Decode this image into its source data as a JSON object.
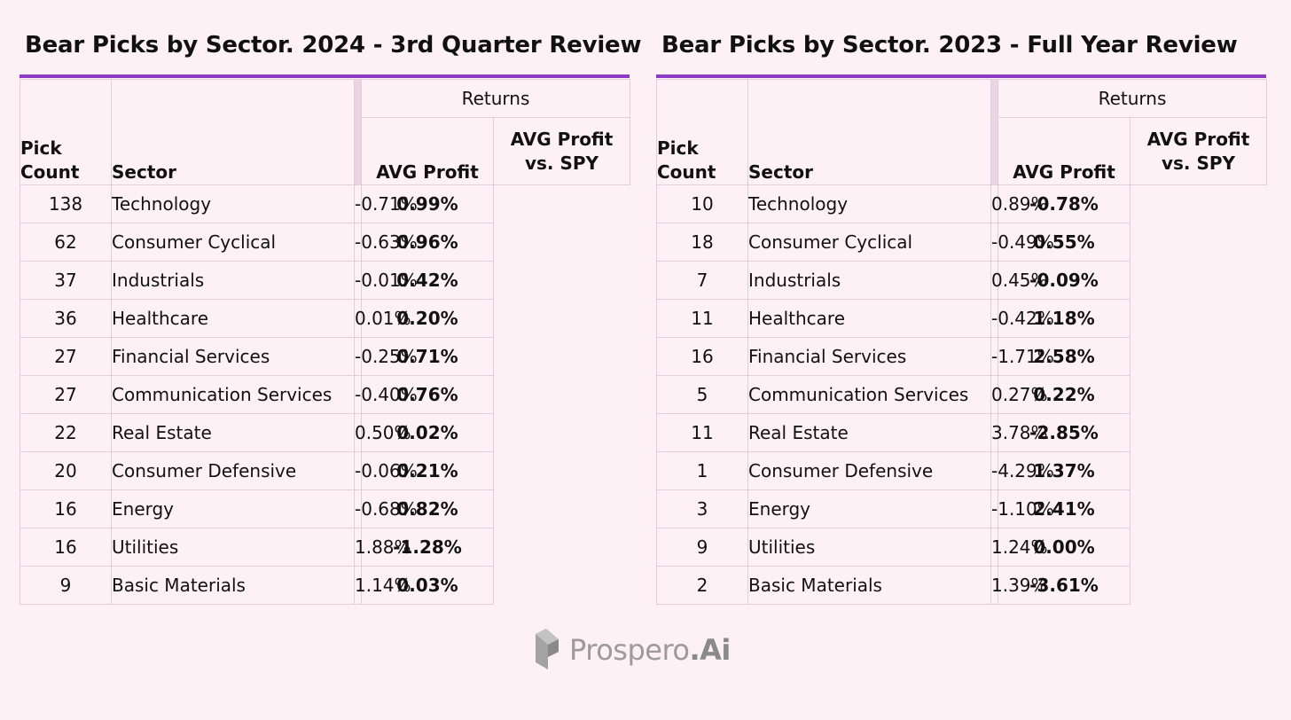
{
  "tables": [
    {
      "title": "Bear Picks by Sector.  2024 - 3rd Quarter Review",
      "headers": {
        "pick_count": "Pick\nCount",
        "sector": "Sector",
        "returns": "Returns",
        "avg_profit": "AVG Profit",
        "avg_profit_vs_spy": "AVG Profit\nvs. SPY"
      },
      "rows": [
        {
          "count": "138",
          "sector": "Technology",
          "avg": "-0.71%",
          "vs": "0.99%"
        },
        {
          "count": "62",
          "sector": "Consumer Cyclical",
          "avg": "-0.63%",
          "vs": "0.96%"
        },
        {
          "count": "37",
          "sector": "Industrials",
          "avg": "-0.01%",
          "vs": "0.42%"
        },
        {
          "count": "36",
          "sector": "Healthcare",
          "avg": "0.01%",
          "vs": "0.20%"
        },
        {
          "count": "27",
          "sector": "Financial Services",
          "avg": "-0.25%",
          "vs": "0.71%"
        },
        {
          "count": "27",
          "sector": "Communication Services",
          "avg": "-0.40%",
          "vs": "0.76%"
        },
        {
          "count": "22",
          "sector": "Real Estate",
          "avg": "0.50%",
          "vs": "0.02%"
        },
        {
          "count": "20",
          "sector": "Consumer Defensive",
          "avg": "-0.06%",
          "vs": "0.21%"
        },
        {
          "count": "16",
          "sector": "Energy",
          "avg": "-0.68%",
          "vs": "0.82%"
        },
        {
          "count": "16",
          "sector": "Utilities",
          "avg": "1.88%",
          "vs": "-1.28%"
        },
        {
          "count": "9",
          "sector": "Basic Materials",
          "avg": "1.14%",
          "vs": "0.03%"
        }
      ]
    },
    {
      "title": "Bear Picks by Sector.  2023 - Full Year Review",
      "headers": {
        "pick_count": "Pick\nCount",
        "sector": "Sector",
        "returns": "Returns",
        "avg_profit": "AVG Profit",
        "avg_profit_vs_spy": "AVG Profit\nvs. SPY"
      },
      "rows": [
        {
          "count": "10",
          "sector": "Technology",
          "avg": "0.89%",
          "vs": "-0.78%"
        },
        {
          "count": "18",
          "sector": "Consumer Cyclical",
          "avg": "-0.49%",
          "vs": "0.55%"
        },
        {
          "count": "7",
          "sector": "Industrials",
          "avg": "0.45%",
          "vs": "-0.09%"
        },
        {
          "count": "11",
          "sector": "Healthcare",
          "avg": "-0.42%",
          "vs": "1.18%"
        },
        {
          "count": "16",
          "sector": "Financial Services",
          "avg": "-1.71%",
          "vs": "2.58%"
        },
        {
          "count": "5",
          "sector": "Communication Services",
          "avg": "0.27%",
          "vs": "0.22%"
        },
        {
          "count": "11",
          "sector": "Real Estate",
          "avg": "3.78%",
          "vs": "-2.85%"
        },
        {
          "count": "1",
          "sector": "Consumer Defensive",
          "avg": "-4.29%",
          "vs": "1.37%"
        },
        {
          "count": "3",
          "sector": "Energy",
          "avg": "-1.10%",
          "vs": "2.41%"
        },
        {
          "count": "9",
          "sector": "Utilities",
          "avg": "1.24%",
          "vs": "0.00%"
        },
        {
          "count": "2",
          "sector": "Basic Materials",
          "avg": "1.39%",
          "vs": "-3.61%"
        }
      ]
    }
  ],
  "logo": {
    "name": "Prospero",
    "suffix": ".Ai",
    "icon": "prospero-logo-icon"
  },
  "colors": {
    "background": "#fdf1f6",
    "accent": "#8e3cc6",
    "gridline": "#e2cdd9",
    "logo": "#9b9b9b"
  }
}
